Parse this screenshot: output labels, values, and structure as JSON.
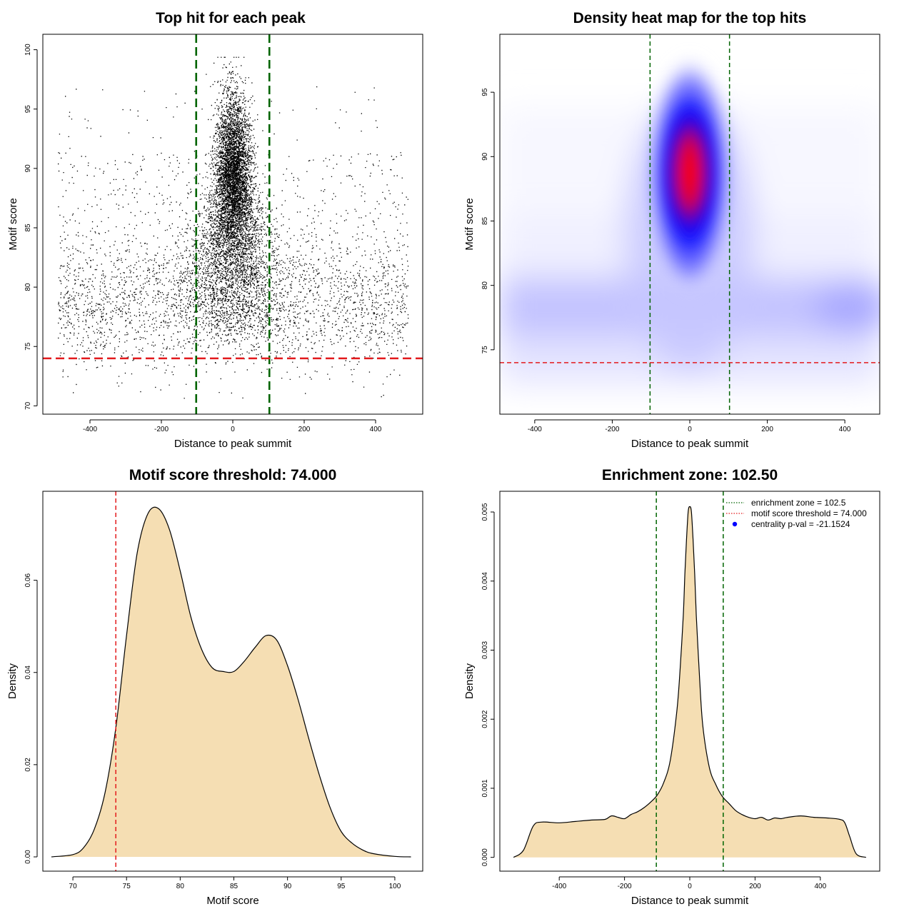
{
  "colors": {
    "zone_line": "#006400",
    "threshold_line": "#e31a1c",
    "density_fill": "#f5deb3",
    "heat_low": "#ffffff",
    "heat_mid": "#0000ff",
    "heat_high": "#ff0000",
    "legend_dot": "#0000ff"
  },
  "chart_data": [
    {
      "id": "scatter",
      "type": "scatter",
      "title": "Top hit for each peak",
      "xlabel": "Distance to peak summit",
      "ylabel": "Motif score",
      "xlim": [
        -532,
        532
      ],
      "ylim": [
        69.3,
        101.3
      ],
      "xticks": [
        -400,
        -200,
        0,
        200,
        400
      ],
      "yticks": [
        70,
        75,
        80,
        85,
        90,
        95,
        100
      ],
      "point_count_approx": 16000,
      "x_range": [
        -490,
        490
      ],
      "background_score_mean": 78.5,
      "central_cluster": {
        "x_center": 0,
        "score_center": 89,
        "x_spread": 25,
        "score_spread": 3.5
      },
      "vlines": [
        -102.5,
        102.5
      ],
      "hline": 74
    },
    {
      "id": "heatmap",
      "type": "heatmap",
      "title": "Density heat map for the top hits",
      "xlabel": "Distance to peak summit",
      "ylabel": "Motif score",
      "xlim": [
        -490,
        490
      ],
      "ylim": [
        70,
        99.5
      ],
      "xticks": [
        -400,
        -200,
        0,
        200,
        400
      ],
      "yticks": [
        75,
        80,
        85,
        90,
        95
      ],
      "peak": {
        "x": 0,
        "score": 89
      },
      "vlines": [
        -102.5,
        102.5
      ],
      "hline": 74
    },
    {
      "id": "score-density",
      "type": "area",
      "title": "Motif score threshold: 74.000",
      "xlabel": "Motif score",
      "ylabel": "Density",
      "xlim": [
        67.2,
        102.6
      ],
      "ylim": [
        -0.0031,
        0.0793
      ],
      "xticks": [
        70,
        75,
        80,
        85,
        90,
        95,
        100
      ],
      "yticks": [
        0.0,
        0.02,
        0.04,
        0.06
      ],
      "ytick_labels": [
        "0.00",
        "0.02",
        "0.04",
        "0.06"
      ],
      "x": [
        68,
        70,
        71,
        72,
        73,
        74,
        75,
        76,
        77,
        78,
        79,
        80,
        81,
        82,
        83,
        84,
        85,
        86,
        87,
        88,
        89,
        90,
        91,
        92,
        93,
        94,
        95,
        96,
        97,
        98,
        100,
        101.5
      ],
      "y": [
        0.0,
        0.0005,
        0.002,
        0.006,
        0.014,
        0.028,
        0.048,
        0.066,
        0.0745,
        0.0755,
        0.071,
        0.062,
        0.052,
        0.045,
        0.041,
        0.0402,
        0.0402,
        0.0425,
        0.0455,
        0.048,
        0.047,
        0.0415,
        0.034,
        0.0255,
        0.0175,
        0.0105,
        0.0055,
        0.003,
        0.0015,
        0.0007,
        0.0001,
        0.0
      ],
      "vline": 74
    },
    {
      "id": "distance-density",
      "type": "area",
      "title": "Enrichment zone: 102.50",
      "xlabel": "Distance to peak summit",
      "ylabel": "Density",
      "xlim": [
        -582,
        582
      ],
      "ylim": [
        -0.0002,
        0.0053
      ],
      "xticks": [
        -400,
        -200,
        0,
        200,
        400
      ],
      "yticks": [
        0.0,
        0.001,
        0.002,
        0.003,
        0.004,
        0.005
      ],
      "ytick_labels": [
        "0.000",
        "0.001",
        "0.002",
        "0.003",
        "0.004",
        "0.005"
      ],
      "x": [
        -540,
        -510,
        -480,
        -455,
        -400,
        -350,
        -300,
        -260,
        -240,
        -220,
        -200,
        -180,
        -160,
        -140,
        -120,
        -100,
        -80,
        -60,
        -40,
        -30,
        -20,
        -15,
        -10,
        -5,
        0,
        5,
        10,
        15,
        20,
        30,
        40,
        60,
        80,
        100,
        120,
        140,
        160,
        180,
        200,
        220,
        240,
        260,
        280,
        300,
        340,
        380,
        420,
        460,
        475,
        490,
        510,
        540
      ],
      "y": [
        0.0,
        0.0001,
        0.00045,
        0.00051,
        0.0005,
        0.00052,
        0.00054,
        0.00055,
        0.0006,
        0.00058,
        0.00056,
        0.00062,
        0.00066,
        0.00072,
        0.0008,
        0.0009,
        0.00108,
        0.0014,
        0.0021,
        0.0027,
        0.0035,
        0.0041,
        0.0046,
        0.005,
        0.00508,
        0.005,
        0.0046,
        0.0041,
        0.0035,
        0.0026,
        0.0019,
        0.0013,
        0.00105,
        0.00088,
        0.00078,
        0.00068,
        0.00062,
        0.00058,
        0.00056,
        0.00058,
        0.00054,
        0.00057,
        0.00056,
        0.00058,
        0.0006,
        0.00058,
        0.00057,
        0.00055,
        0.0005,
        0.0003,
        5e-05,
        0.0
      ],
      "vlines": [
        -102.5,
        102.5
      ],
      "legend": [
        {
          "label": "enrichment zone = 102.5",
          "symbol": "dotted-line",
          "color": "#006400"
        },
        {
          "label": "motif score threshold = 74.000",
          "symbol": "dotted-line",
          "color": "#e31a1c"
        },
        {
          "label": "centrality p-val = -21.1524",
          "symbol": "dot",
          "color": "#0000ff"
        }
      ]
    }
  ]
}
